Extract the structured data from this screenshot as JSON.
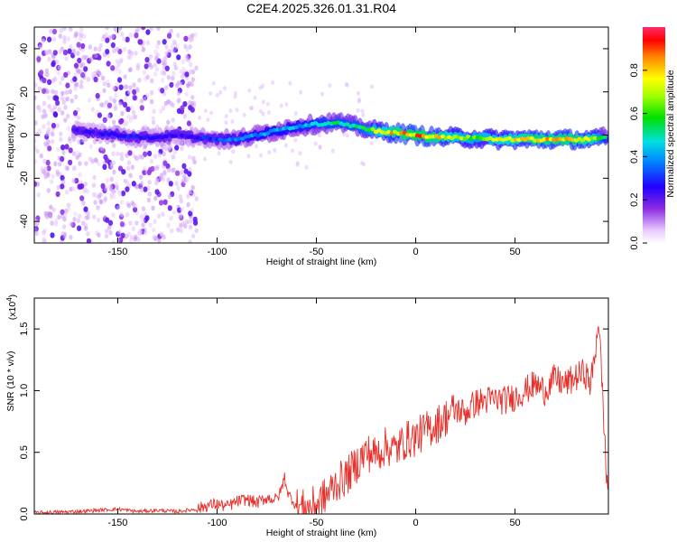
{
  "title": "C2E4.2025.326.01.31.R04",
  "chart_data": [
    {
      "type": "heatmap",
      "title": "C2E4.2025.326.01.31.R04",
      "xlabel": "Height of straight line (km)",
      "ylabel": "Frequency (Hz)",
      "xlim": [
        -192,
        97
      ],
      "ylim": [
        -50,
        50
      ],
      "x_ticks": [
        -150,
        -100,
        -50,
        0,
        50
      ],
      "x_tick_labels": [
        "-150",
        "-100",
        "-50",
        "0",
        "50"
      ],
      "y_ticks": [
        -40,
        -20,
        0,
        20,
        40
      ],
      "y_tick_labels": [
        "-40",
        "-20",
        "0",
        "20",
        "40"
      ],
      "grid": false,
      "colorbar": {
        "label": "Normalized spectral amplitude",
        "range": [
          0,
          1
        ],
        "ticks": [
          0.0,
          0.2,
          0.4,
          0.6,
          0.8
        ],
        "tick_labels": [
          "0.0",
          "0.2",
          "0.4",
          "0.6",
          "0.8"
        ],
        "colormap": "rainbow (violet to red)"
      },
      "ridge": {
        "description": "Dominant frequency ridge by height",
        "x": [
          -170,
          -160,
          -150,
          -140,
          -130,
          -120,
          -110,
          -100,
          -90,
          -80,
          -70,
          -60,
          -50,
          -40,
          -30,
          -25,
          -20,
          -10,
          0,
          10,
          20,
          30,
          40,
          50,
          60,
          70,
          80,
          90,
          95
        ],
        "frequency": [
          2,
          1,
          0,
          -1,
          -1,
          0,
          -1,
          -2,
          -2,
          0,
          2,
          4,
          5,
          6,
          4,
          3,
          2,
          1,
          0,
          -1,
          -1,
          -1.5,
          -2,
          -2,
          -2,
          -2,
          -2,
          -2,
          -1
        ],
        "amplitude": [
          0.25,
          0.25,
          0.3,
          0.3,
          0.28,
          0.25,
          0.3,
          0.35,
          0.4,
          0.42,
          0.45,
          0.45,
          0.5,
          0.55,
          0.55,
          0.6,
          0.75,
          0.85,
          0.9,
          0.85,
          0.75,
          0.7,
          0.75,
          0.8,
          0.85,
          0.85,
          0.85,
          0.8,
          0.5
        ]
      },
      "scatter_noise": {
        "description": "Scattered low-amplitude noise, dense for heights below about -110 km",
        "x_range": [
          -192,
          -110
        ],
        "amplitude_range": [
          0.05,
          0.2
        ]
      },
      "colors": {
        "low": "#d9b3ff",
        "mid": "#5a00e6",
        "high": "#ff0000"
      }
    },
    {
      "type": "line",
      "xlabel": "Height of straight line (km)",
      "ylabel": "SNR (10 * v/v)",
      "y_scale_label": "(x10",
      "y_scale_exponent": "4",
      "xlim": [
        -192,
        97
      ],
      "ylim": [
        0,
        1.75
      ],
      "x_ticks": [
        -150,
        -100,
        -50,
        0,
        50
      ],
      "x_tick_labels": [
        "-150",
        "-100",
        "-50",
        "0",
        "50"
      ],
      "y_ticks": [
        0.0,
        0.5,
        1.0,
        1.5
      ],
      "y_tick_labels": [
        "0.0",
        "0.5",
        "1.0",
        "1.5"
      ],
      "grid": false,
      "series": [
        {
          "color": "#e8302a",
          "x": [
            -192,
            -180,
            -170,
            -160,
            -150,
            -140,
            -130,
            -120,
            -110,
            -105,
            -100,
            -95,
            -90,
            -85,
            -80,
            -75,
            -70,
            -68,
            -66,
            -64,
            -62,
            -60,
            -55,
            -50,
            -45,
            -40,
            -35,
            -30,
            -25,
            -20,
            -15,
            -10,
            -5,
            0,
            5,
            10,
            15,
            20,
            25,
            30,
            35,
            40,
            45,
            50,
            55,
            60,
            65,
            70,
            75,
            80,
            85,
            88,
            90,
            92,
            94,
            96,
            97
          ],
          "values": [
            0.01,
            0.015,
            0.02,
            0.03,
            0.04,
            0.02,
            0.03,
            0.02,
            0.04,
            0.07,
            0.08,
            0.06,
            0.1,
            0.12,
            0.09,
            0.13,
            0.12,
            0.18,
            0.3,
            0.15,
            0.12,
            0.06,
            0.04,
            0.08,
            0.15,
            0.25,
            0.3,
            0.4,
            0.5,
            0.48,
            0.55,
            0.52,
            0.6,
            0.62,
            0.68,
            0.72,
            0.78,
            0.85,
            0.82,
            0.9,
            0.92,
            0.93,
            0.92,
            0.95,
            1.0,
            1.05,
            1.0,
            1.1,
            1.05,
            1.1,
            1.15,
            1.05,
            1.25,
            1.6,
            1.0,
            0.3,
            0.2
          ]
        }
      ]
    }
  ]
}
